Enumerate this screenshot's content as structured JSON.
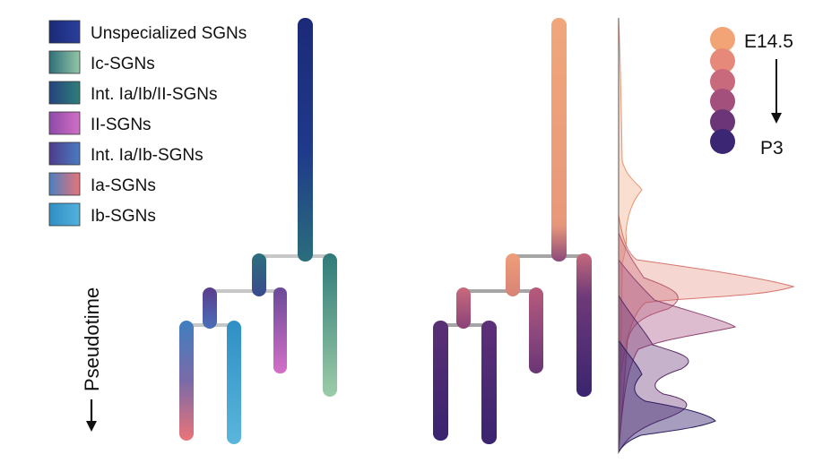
{
  "legend": {
    "items": [
      {
        "label": "Unspecialized SGNs",
        "colors": [
          "#1b2a78",
          "#2b3f9a"
        ]
      },
      {
        "label": "Ic-SGNs",
        "colors": [
          "#2f6f78",
          "#93c6a8"
        ]
      },
      {
        "label": "Int. Ia/Ib/II-SGNs",
        "colors": [
          "#26437e",
          "#2e7f7a"
        ]
      },
      {
        "label": "II-SGNs",
        "colors": [
          "#8e4aa8",
          "#d070c4"
        ]
      },
      {
        "label": "Int. Ia/Ib-SGNs",
        "colors": [
          "#4d3c8c",
          "#4a7bc2"
        ]
      },
      {
        "label": "Ia-SGNs",
        "colors": [
          "#4b7fc0",
          "#e8737a"
        ]
      },
      {
        "label": "Ib-SGNs",
        "colors": [
          "#2f8fc4",
          "#54b1dc"
        ]
      }
    ]
  },
  "axis": {
    "label": "Pseudotime"
  },
  "stage_legend": {
    "start_label": "E14.5",
    "end_label": "P3",
    "colors": [
      "#f2a477",
      "#e6897a",
      "#c9697c",
      "#a3507d",
      "#6b3577",
      "#3a2672"
    ]
  }
}
